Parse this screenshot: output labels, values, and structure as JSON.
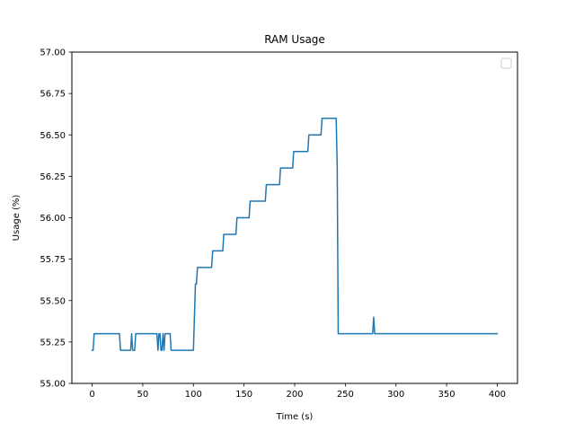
{
  "chart_data": {
    "type": "line",
    "title": "RAM Usage",
    "xlabel": "Time (s)",
    "ylabel": "Usage (%)",
    "xlim": [
      -20,
      420
    ],
    "ylim": [
      55.0,
      57.0
    ],
    "x_ticks": [
      0,
      50,
      100,
      150,
      200,
      250,
      300,
      350,
      400
    ],
    "x_tick_labels": [
      "0",
      "50",
      "100",
      "150",
      "200",
      "250",
      "300",
      "350",
      "400"
    ],
    "y_ticks": [
      55.0,
      55.25,
      55.5,
      55.75,
      56.0,
      56.25,
      56.5,
      56.75,
      57.0
    ],
    "y_tick_labels": [
      "55.00",
      "55.25",
      "55.50",
      "55.75",
      "56.00",
      "56.25",
      "56.50",
      "56.75",
      "57.00"
    ],
    "grid": false,
    "legend": {
      "placement": "top-right",
      "entries": []
    },
    "series": [
      {
        "color": "#1f77b4",
        "x": [
          0,
          1,
          2,
          3,
          27,
          28,
          38,
          39,
          40,
          41,
          42,
          43,
          44,
          64,
          65,
          66,
          67,
          68,
          69,
          70,
          71,
          72,
          73,
          74,
          77,
          78,
          79,
          100,
          101,
          102,
          103,
          104,
          105,
          106,
          107,
          118,
          119,
          120,
          121,
          129,
          130,
          131,
          132,
          142,
          143,
          144,
          145,
          155,
          156,
          157,
          158,
          171,
          172,
          173,
          174,
          185,
          186,
          187,
          188,
          198,
          199,
          200,
          201,
          213,
          214,
          215,
          216,
          226,
          227,
          228,
          229,
          241,
          242,
          243,
          244,
          277,
          278,
          279,
          280,
          400
        ],
        "y": [
          55.2,
          55.2,
          55.3,
          55.3,
          55.3,
          55.2,
          55.2,
          55.3,
          55.2,
          55.2,
          55.2,
          55.3,
          55.3,
          55.3,
          55.2,
          55.3,
          55.3,
          55.2,
          55.2,
          55.3,
          55.2,
          55.3,
          55.3,
          55.3,
          55.3,
          55.2,
          55.2,
          55.2,
          55.4,
          55.6,
          55.6,
          55.7,
          55.7,
          55.7,
          55.7,
          55.7,
          55.8,
          55.8,
          55.8,
          55.8,
          55.9,
          55.9,
          55.9,
          55.9,
          56.0,
          56.0,
          56.0,
          56.0,
          56.1,
          56.1,
          56.1,
          56.1,
          56.2,
          56.2,
          56.2,
          56.2,
          56.3,
          56.3,
          56.3,
          56.3,
          56.4,
          56.4,
          56.4,
          56.4,
          56.5,
          56.5,
          56.5,
          56.5,
          56.6,
          56.6,
          56.6,
          56.6,
          56.3,
          55.3,
          55.3,
          55.3,
          55.4,
          55.3,
          55.3,
          55.3
        ]
      }
    ]
  }
}
